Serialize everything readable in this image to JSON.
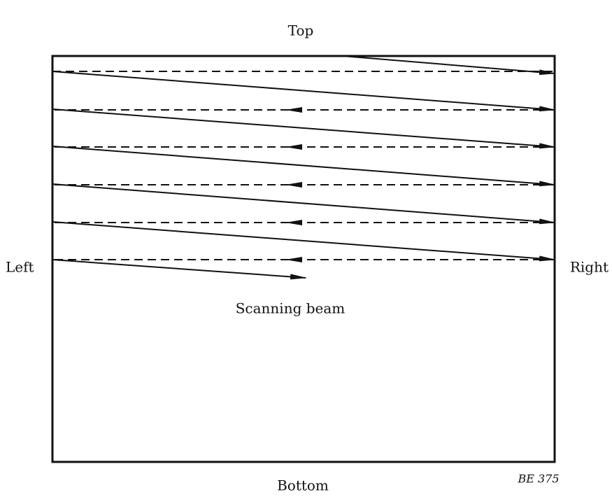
{
  "labels": {
    "top": "Top",
    "bottom": "Bottom",
    "left": "Left",
    "right": "Right",
    "beam": "Scanning beam",
    "code": "BE 375"
  }
}
